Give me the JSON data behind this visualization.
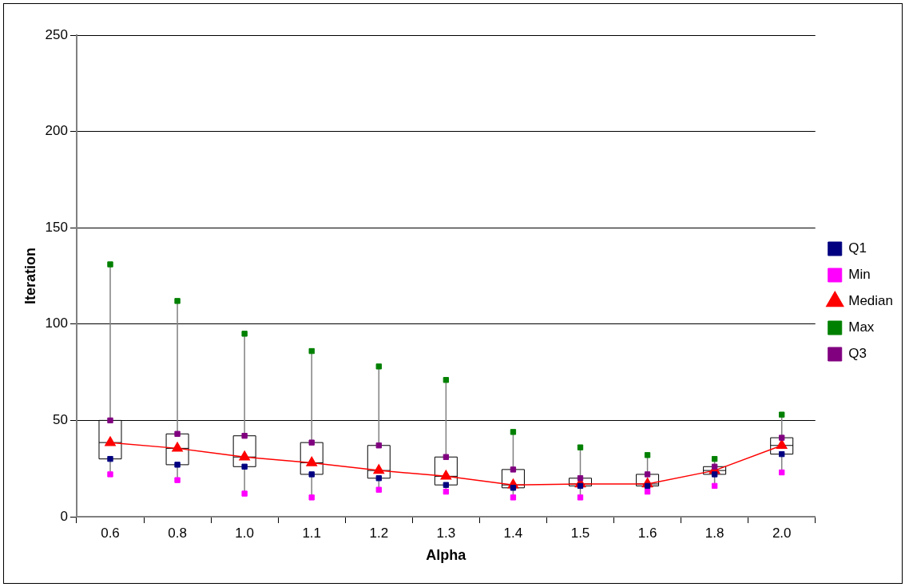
{
  "chart_data": {
    "type": "line",
    "xlabel": "Alpha",
    "ylabel": "Iteration",
    "categories": [
      "0.6",
      "0.8",
      "1.0",
      "1.1",
      "1.2",
      "1.3",
      "1.4",
      "1.5",
      "1.6",
      "1.8",
      "2.0"
    ],
    "series": [
      {
        "type": "box",
        "color": "#ffffff",
        "boxes": [
          {
            "low": 22,
            "q1": 30,
            "median": 38.5,
            "q3": 50,
            "high": 131
          },
          {
            "low": 19,
            "q1": 27,
            "median": 35.5,
            "q3": 43,
            "high": 112
          },
          {
            "low": 12,
            "q1": 26,
            "median": 31,
            "q3": 42,
            "high": 95
          },
          {
            "low": 10,
            "q1": 22,
            "median": 28,
            "q3": 38.5,
            "high": 86
          },
          {
            "low": 14,
            "q1": 20,
            "median": 24,
            "q3": 37,
            "high": 78
          },
          {
            "low": 13,
            "q1": 16.5,
            "median": 21,
            "q3": 31,
            "high": 71
          },
          {
            "low": 10,
            "q1": 15,
            "median": 16.5,
            "q3": 24.5,
            "high": 44
          },
          {
            "low": 10,
            "q1": 16,
            "median": 17,
            "q3": 20,
            "high": 36
          },
          {
            "low": 13,
            "q1": 16,
            "median": 17,
            "q3": 22,
            "high": 32
          },
          {
            "low": 16,
            "q1": 22,
            "median": 24,
            "q3": 26,
            "high": 30
          },
          {
            "low": 23,
            "q1": 32.5,
            "median": 37,
            "q3": 41,
            "high": 53
          }
        ]
      },
      {
        "name": "Q1",
        "type": "scatter",
        "marker": "square",
        "color": "#000080",
        "values": [
          30,
          27,
          26,
          22,
          20,
          16.5,
          15,
          16,
          16,
          22,
          32.5
        ]
      },
      {
        "name": "Min",
        "type": "scatter",
        "marker": "square",
        "color": "#ff00ff",
        "values": [
          22,
          19,
          12,
          10,
          14,
          13,
          10,
          10,
          13,
          16,
          23
        ]
      },
      {
        "name": "Median",
        "color": "#ff0000",
        "marker": "triangle",
        "values": [
          38.5,
          35.5,
          31,
          28,
          24,
          21,
          16.5,
          17,
          17,
          24,
          37
        ]
      },
      {
        "name": "Max",
        "type": "scatter",
        "marker": "square",
        "color": "#008000",
        "values": [
          131,
          112,
          95,
          86,
          78,
          71,
          44,
          36,
          32,
          30,
          53
        ]
      },
      {
        "name": "Q3",
        "type": "scatter",
        "marker": "square",
        "color": "#800080",
        "values": [
          50,
          43,
          42,
          38.5,
          37,
          31,
          24.5,
          20,
          22,
          26,
          41
        ]
      }
    ],
    "ylim": [
      0,
      250
    ],
    "yticks": [
      0,
      50,
      100,
      150,
      200,
      250
    ],
    "grid": "y",
    "legend": "right"
  }
}
